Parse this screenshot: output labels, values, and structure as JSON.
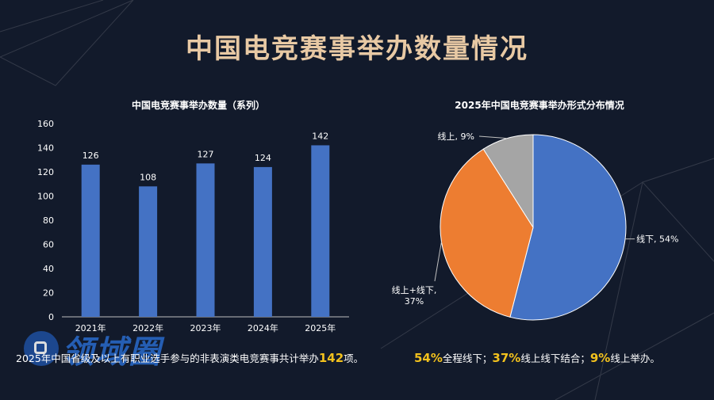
{
  "page": {
    "title": "中国电竞赛事举办数量情况"
  },
  "chart_data": [
    {
      "type": "bar",
      "title": "中国电竞赛事举办数量（系列）",
      "categories": [
        "2021年",
        "2022年",
        "2023年",
        "2024年",
        "2025年"
      ],
      "values": [
        126,
        108,
        127,
        124,
        142
      ],
      "ylim": [
        0,
        160
      ],
      "yticks": [
        0,
        20,
        40,
        60,
        80,
        100,
        120,
        140,
        160
      ],
      "data_labels": true,
      "grid": false,
      "colors": {
        "bar": "#4472c4",
        "axis_text": "#ffffff"
      }
    },
    {
      "type": "pie",
      "title": "2025年中国电竞赛事举办形式分布情况",
      "slices": [
        {
          "label": "线下",
          "value": 54,
          "label_text": "线下, 54%",
          "color": "#4472c4"
        },
        {
          "label": "线上+线下",
          "value": 37,
          "label_text_1": "线上+线下,",
          "label_text_2": "37%",
          "color": "#ed7d31"
        },
        {
          "label": "线上",
          "value": 9,
          "label_text": "线上, 9%",
          "color": "#a5a5a5"
        }
      ]
    }
  ],
  "captions": {
    "left_prefix": "2025年中国省级及以上有职业选手参与的非表演类电竞赛事共计举办",
    "left_value": "142",
    "left_suffix": "项。",
    "right_v1": "54%",
    "right_t1": "全程线下；",
    "right_v2": "37%",
    "right_t2": "线上线下结合；",
    "right_v3": "9%",
    "right_t3": "线上举办。"
  },
  "watermark": {
    "text": "领域圈"
  },
  "colors": {
    "background": "#121a2b",
    "title": "#e8c9a4",
    "highlight": "#f2c11d"
  }
}
